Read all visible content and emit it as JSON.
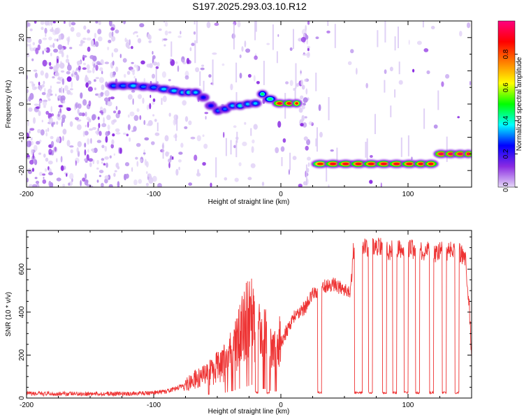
{
  "title": "S197.2025.293.03.10.R12",
  "chart_data": [
    {
      "type": "heatmap",
      "xlabel": "Height of straight line (km)",
      "ylabel": "Frequency (Hz)",
      "xlim": [
        -200,
        150
      ],
      "ylim": [
        -25,
        25
      ],
      "x_ticks": [
        -200,
        -100,
        0,
        100
      ],
      "y_ticks": [
        -20,
        -10,
        0,
        10,
        20
      ],
      "colorbar": {
        "label": "Normalized spectral amplitude",
        "range": [
          0,
          1
        ],
        "ticks": [
          0.0,
          0.2,
          0.4,
          0.6,
          0.8
        ],
        "colormap": [
          "#e6d8f8",
          "#8a2be2",
          "#0000ff",
          "#00ffff",
          "#00ff00",
          "#ffff00",
          "#ff8000",
          "#ff0000",
          "#ff0080"
        ]
      },
      "ridge": [
        {
          "x": -135,
          "y": 5.5,
          "amp": 0.3
        },
        {
          "x": -128,
          "y": 5.5,
          "amp": 0.3
        },
        {
          "x": -120,
          "y": 5.5,
          "amp": 0.35
        },
        {
          "x": -112,
          "y": 5.2,
          "amp": 0.3
        },
        {
          "x": -104,
          "y": 5.0,
          "amp": 0.3
        },
        {
          "x": -96,
          "y": 4.5,
          "amp": 0.35
        },
        {
          "x": -88,
          "y": 4.0,
          "amp": 0.35
        },
        {
          "x": -80,
          "y": 3.5,
          "amp": 0.35
        },
        {
          "x": -75,
          "y": 3.5,
          "amp": 0.4
        },
        {
          "x": -70,
          "y": 3.5,
          "amp": 0.35
        },
        {
          "x": -64,
          "y": 2.0,
          "amp": 0.25
        },
        {
          "x": -58,
          "y": -0.5,
          "amp": 0.25
        },
        {
          "x": -52,
          "y": -2.0,
          "amp": 0.3
        },
        {
          "x": -47,
          "y": -1.5,
          "amp": 0.3
        },
        {
          "x": -41,
          "y": -0.5,
          "amp": 0.35
        },
        {
          "x": -35,
          "y": -0.5,
          "amp": 0.4
        },
        {
          "x": -29,
          "y": 0.0,
          "amp": 0.35
        },
        {
          "x": -23,
          "y": 0.2,
          "amp": 0.35
        },
        {
          "x": -17,
          "y": 3.0,
          "amp": 0.45
        },
        {
          "x": -12,
          "y": 1.5,
          "amp": 0.45
        },
        {
          "x": -5,
          "y": 0.2,
          "amp": 0.9
        },
        {
          "x": 3,
          "y": 0.2,
          "amp": 0.9
        },
        {
          "x": 10,
          "y": 0.2,
          "amp": 0.85
        },
        {
          "x": 26,
          "y": -18.0,
          "amp": 0.85
        },
        {
          "x": 36,
          "y": -18.0,
          "amp": 0.9
        },
        {
          "x": 46,
          "y": -18.0,
          "amp": 0.9
        },
        {
          "x": 56,
          "y": -18.0,
          "amp": 0.9
        },
        {
          "x": 66,
          "y": -18.0,
          "amp": 0.9
        },
        {
          "x": 76,
          "y": -18.0,
          "amp": 0.9
        },
        {
          "x": 86,
          "y": -18.0,
          "amp": 0.9
        },
        {
          "x": 96,
          "y": -18.0,
          "amp": 0.9
        },
        {
          "x": 106,
          "y": -18.0,
          "amp": 0.9
        },
        {
          "x": 114,
          "y": -18.0,
          "amp": 0.9
        },
        {
          "x": 122,
          "y": -15.0,
          "amp": 0.95
        },
        {
          "x": 130,
          "y": -15.0,
          "amp": 0.95
        },
        {
          "x": 137,
          "y": -15.0,
          "amp": 0.95
        },
        {
          "x": 145,
          "y": -15.0,
          "amp": 0.95
        }
      ]
    },
    {
      "type": "line",
      "xlabel": "Height of straight line (km)",
      "ylabel": "SNR (10 * v/v)",
      "xlim": [
        -200,
        150
      ],
      "ylim": [
        0,
        780
      ],
      "x_ticks": [
        -200,
        -100,
        0,
        100
      ],
      "y_ticks": [
        0,
        200,
        400,
        600
      ],
      "series": [
        {
          "color": "#ee3333",
          "x": [
            -200,
            -180,
            -160,
            -140,
            -120,
            -100,
            -90,
            -80,
            -70,
            -60,
            -55,
            -50,
            -45,
            -40,
            -35,
            -30,
            -25,
            -22,
            -20,
            -15,
            -10,
            -8,
            -5,
            0,
            5,
            10,
            15,
            20,
            25,
            30,
            35,
            40,
            45,
            50,
            55,
            57,
            60,
            65,
            70,
            75,
            80,
            85,
            90,
            95,
            100,
            105,
            110,
            115,
            120,
            125,
            130,
            135,
            140,
            145,
            148,
            150
          ],
          "y": [
            20,
            20,
            20,
            20,
            20,
            25,
            30,
            50,
            80,
            100,
            120,
            140,
            160,
            200,
            260,
            320,
            380,
            420,
            320,
            300,
            260,
            220,
            200,
            260,
            320,
            380,
            400,
            430,
            480,
            510,
            520,
            530,
            520,
            510,
            500,
            680,
            710,
            700,
            690,
            710,
            700,
            680,
            700,
            690,
            700,
            690,
            680,
            690,
            670,
            690,
            680,
            690,
            680,
            650,
            450,
            200
          ]
        }
      ],
      "dropouts": [
        {
          "from": -20,
          "to": -18,
          "y": 20
        },
        {
          "from": -11,
          "to": -9,
          "y": 20
        },
        {
          "from": 29,
          "to": 32,
          "y": 20
        },
        {
          "from": 58,
          "to": 64,
          "y": 20
        },
        {
          "from": 69,
          "to": 72,
          "y": 20
        },
        {
          "from": 80,
          "to": 83,
          "y": 20
        },
        {
          "from": 88,
          "to": 91,
          "y": 20
        },
        {
          "from": 97,
          "to": 100,
          "y": 20
        },
        {
          "from": 106,
          "to": 109,
          "y": 20
        },
        {
          "from": 117,
          "to": 120,
          "y": 20
        },
        {
          "from": 127,
          "to": 130,
          "y": 20
        },
        {
          "from": 137,
          "to": 140,
          "y": 20
        }
      ]
    }
  ]
}
